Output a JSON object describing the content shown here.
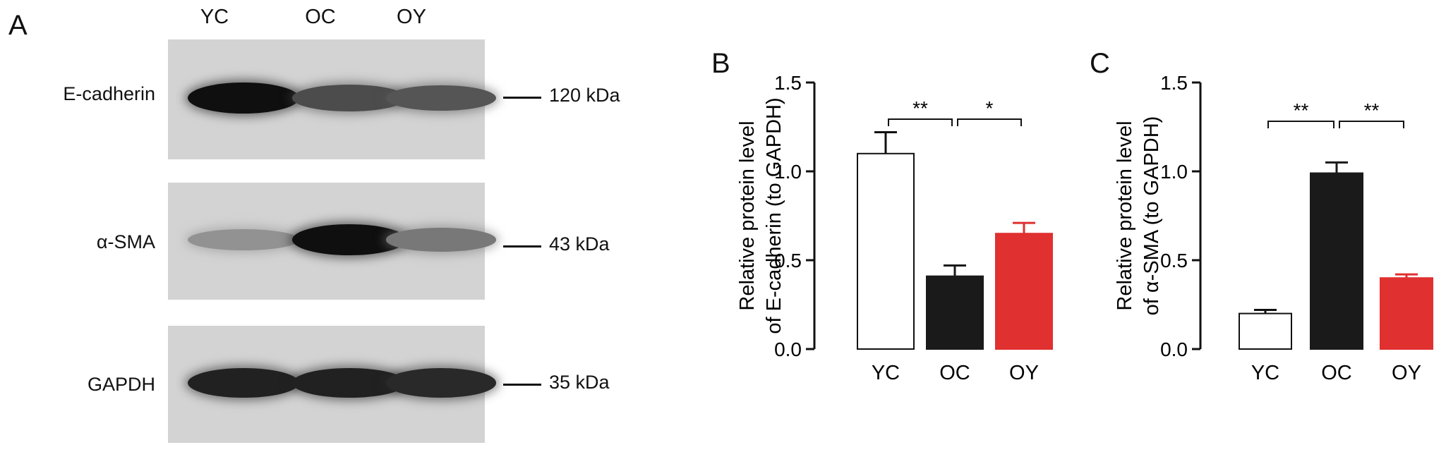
{
  "panels": {
    "a": "A",
    "b": "B",
    "c": "C"
  },
  "blot": {
    "lanes": [
      "YC",
      "OC",
      "OY"
    ],
    "rows": [
      {
        "label": "E-cadherin",
        "marker": "120 kDa",
        "intensity": [
          1.0,
          0.65,
          0.6
        ]
      },
      {
        "label": "α-SMA",
        "marker": "43 kDa",
        "intensity": [
          0.25,
          1.0,
          0.4
        ]
      },
      {
        "label": "GAPDH",
        "marker": "35 kDa",
        "intensity": [
          0.9,
          0.9,
          0.85
        ]
      }
    ]
  },
  "colors": {
    "YC": "#ffffff",
    "OC": "#1a1a1a",
    "OY": "#e03030"
  },
  "chart_data": [
    {
      "type": "bar",
      "panel": "B",
      "categories": [
        "YC",
        "OC",
        "OY"
      ],
      "values": [
        1.1,
        0.41,
        0.65
      ],
      "errors": [
        0.12,
        0.06,
        0.06
      ],
      "ylabel_line1": "Relative protein level",
      "ylabel_line2": "of E-cadherin (to GAPDH)",
      "ylim": [
        0,
        1.5
      ],
      "yticks": [
        "0.0",
        "0.5",
        "1.0",
        "1.5"
      ],
      "significance": [
        {
          "from": "YC",
          "to": "OC",
          "label": "**"
        },
        {
          "from": "OC",
          "to": "OY",
          "label": "*"
        }
      ]
    },
    {
      "type": "bar",
      "panel": "C",
      "categories": [
        "YC",
        "OC",
        "OY"
      ],
      "values": [
        0.2,
        0.99,
        0.4
      ],
      "errors": [
        0.02,
        0.06,
        0.02
      ],
      "ylabel_line1": "Relative protein level",
      "ylabel_line2": "of α-SMA (to GAPDH)",
      "ylim": [
        0,
        1.5
      ],
      "yticks": [
        "0.0",
        "0.5",
        "1.0",
        "1.5"
      ],
      "significance": [
        {
          "from": "YC",
          "to": "OC",
          "label": "**"
        },
        {
          "from": "OC",
          "to": "OY",
          "label": "**"
        }
      ]
    }
  ]
}
